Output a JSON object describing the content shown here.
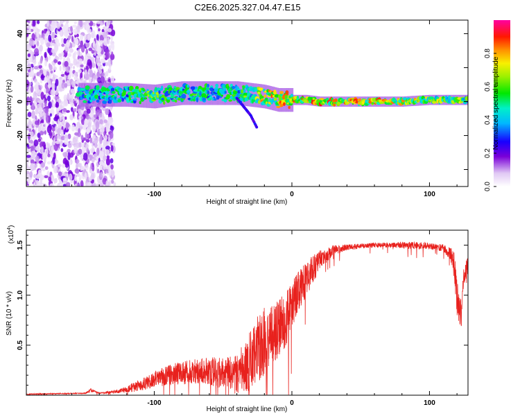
{
  "title": "C2E6.2025.327.04.47.E15",
  "chart_data": [
    {
      "type": "heatmap",
      "name": "spectrogram",
      "xlabel": "Height of straight line (km)",
      "ylabel": "Frequency (Hz)",
      "xlim": [
        -193,
        128
      ],
      "ylim": [
        -50,
        48
      ],
      "xticks": [
        "-100",
        "0",
        "100"
      ],
      "xtick_values": [
        -100,
        0,
        100
      ],
      "yticks": [
        "-40",
        "-20",
        "0",
        "20",
        "40"
      ],
      "ytick_values": [
        -40,
        -20,
        0,
        20,
        40
      ],
      "colorbar": {
        "label": "Normalized spectral amplitude",
        "range": [
          0,
          1
        ],
        "ticks": [
          "0.0",
          "0.2",
          "0.4",
          "0.6",
          "0.8"
        ],
        "tick_values": [
          0.0,
          0.2,
          0.4,
          0.6,
          0.8
        ]
      },
      "ridge": {
        "x": [
          -150,
          -120,
          -100,
          -80,
          -60,
          -40,
          -30,
          -20,
          -10,
          0,
          10,
          20,
          40,
          60,
          80,
          100,
          128
        ],
        "freq": [
          4,
          4,
          3,
          5,
          5,
          5,
          4,
          3,
          1,
          1,
          1,
          0,
          0,
          0,
          0,
          1,
          1
        ],
        "amplitude": [
          0.55,
          0.6,
          0.7,
          0.62,
          0.6,
          0.62,
          0.7,
          0.85,
          0.9,
          0.92,
          0.95,
          0.95,
          0.9,
          0.9,
          0.85,
          0.8,
          0.75
        ]
      },
      "branch": {
        "x": [
          -40,
          -30,
          -25
        ],
        "freq": [
          2,
          -8,
          -16
        ]
      }
    },
    {
      "type": "line",
      "name": "snr",
      "xlabel": "Height of straight line (km)",
      "ylabel": "SNR (10 * v/v)",
      "multiplier_label": "(x10",
      "multiplier_exp": "4",
      "multiplier_close": ")",
      "xlim": [
        -193,
        128
      ],
      "ylim": [
        0,
        1.65
      ],
      "xticks": [
        "-100",
        "0",
        "100"
      ],
      "xtick_values": [
        -100,
        0,
        100
      ],
      "yticks": [
        "0.5",
        "1.0",
        "1.5"
      ],
      "ytick_values": [
        0.5,
        1.0,
        1.5
      ],
      "series": [
        {
          "name": "SNR",
          "color": "#e8211d",
          "x": [
            -193,
            -150,
            -146,
            -140,
            -125,
            -110,
            -100,
            -90,
            -80,
            -70,
            -60,
            -50,
            -40,
            -30,
            -25,
            -20,
            -15,
            -10,
            -5,
            0,
            5,
            10,
            15,
            20,
            30,
            40,
            50,
            60,
            70,
            80,
            90,
            100,
            110,
            115,
            118,
            120,
            123,
            125,
            128
          ],
          "y": [
            0.01,
            0.02,
            0.05,
            0.02,
            0.04,
            0.1,
            0.16,
            0.2,
            0.22,
            0.24,
            0.24,
            0.22,
            0.2,
            0.35,
            0.45,
            0.55,
            0.6,
            0.65,
            0.75,
            0.9,
            1.05,
            1.15,
            1.25,
            1.35,
            1.45,
            1.48,
            1.49,
            1.5,
            1.5,
            1.5,
            1.5,
            1.49,
            1.47,
            1.42,
            1.3,
            1.0,
            0.8,
            1.2,
            1.3
          ],
          "noise": [
            0.005,
            0.005,
            0.02,
            0.005,
            0.02,
            0.06,
            0.08,
            0.1,
            0.12,
            0.13,
            0.14,
            0.16,
            0.2,
            0.3,
            0.35,
            0.35,
            0.3,
            0.3,
            0.28,
            0.25,
            0.2,
            0.18,
            0.15,
            0.1,
            0.05,
            0.03,
            0.025,
            0.025,
            0.025,
            0.03,
            0.04,
            0.03,
            0.04,
            0.06,
            0.15,
            0.2,
            0.15,
            0.1,
            0.08
          ]
        }
      ]
    }
  ]
}
